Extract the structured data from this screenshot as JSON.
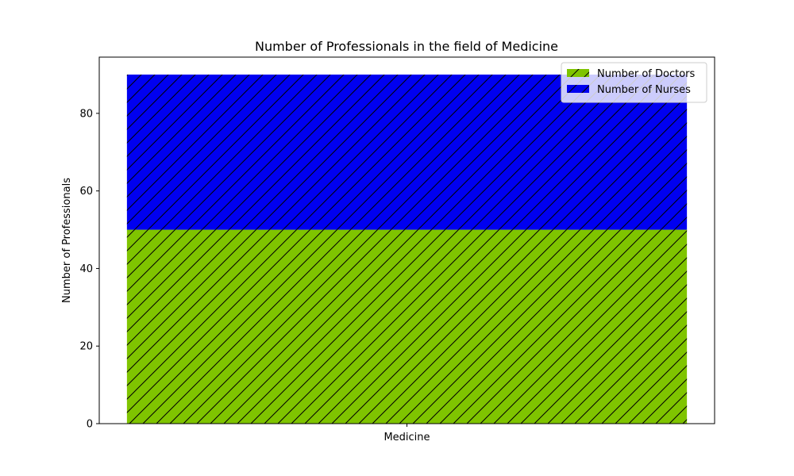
{
  "chart_data": {
    "type": "bar",
    "stacked": true,
    "title": "Number of Professionals in the field of Medicine",
    "xlabel": "",
    "ylabel": "Number of Professionals",
    "categories": [
      "Medicine"
    ],
    "ylim": [
      0,
      94.5
    ],
    "yticks": [
      0,
      20,
      40,
      60,
      80
    ],
    "grid": false,
    "legend_position": "top-right",
    "series": [
      {
        "name": "Number of Doctors",
        "values": [
          50
        ],
        "color": "#7fc400",
        "hatch": "diagonal"
      },
      {
        "name": "Number of Nurses",
        "values": [
          40
        ],
        "color": "#0000f0",
        "hatch": "diagonal"
      }
    ]
  }
}
